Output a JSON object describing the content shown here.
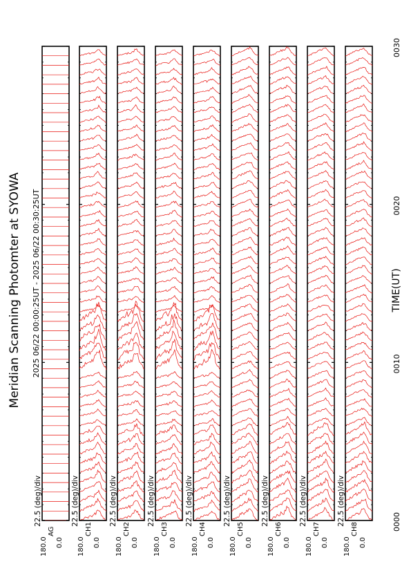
{
  "chart_data": {
    "type": "line",
    "title": "Meridian Scanning Photomter at SYOWA",
    "subtitle": "2025 06/22 00:00:25UT - 2025 06/22 00:30:25UT",
    "xlabel": "TIME(UT)",
    "x_ticks": [
      "0000",
      "0010",
      "0020",
      "0030"
    ],
    "x_range_minutes": [
      0,
      30
    ],
    "y_ticks": [
      "180.0",
      "0.0"
    ],
    "ylim": [
      0,
      180
    ],
    "scale_label": "22.5 (deg)/div",
    "series_color": "#e8100c",
    "panels": [
      {
        "channel": "AG",
        "scale": "22.5 (deg)/div",
        "ymax": "180.0",
        "ymin": "0.0",
        "pattern": "flat"
      },
      {
        "channel": "CH1",
        "scale": "22.5 (deg)/div",
        "ymax": "180.0",
        "ymin": "0.0",
        "pattern": "auroral"
      },
      {
        "channel": "CH2",
        "scale": "22.5 (deg)/div",
        "ymax": "180.0",
        "ymin": "0.0",
        "pattern": "auroral"
      },
      {
        "channel": "CH3",
        "scale": "22.5 (deg)/div",
        "ymax": "180.0",
        "ymin": "0.0",
        "pattern": "auroral"
      },
      {
        "channel": "CH4",
        "scale": "22.5 (deg)/div",
        "ymax": "180.0",
        "ymin": "0.0",
        "pattern": "auroral"
      },
      {
        "channel": "CH5",
        "scale": "22.5 (deg)/div",
        "ymax": "180.0",
        "ymin": "0.0",
        "pattern": "auroral"
      },
      {
        "channel": "CH6",
        "scale": "22.5 (deg)/div",
        "ymax": "180.0",
        "ymin": "0.0",
        "pattern": "auroral"
      },
      {
        "channel": "CH7",
        "scale": "22.5 (deg)/div",
        "ymax": "180.0",
        "ymin": "0.0",
        "pattern": "auroral"
      },
      {
        "channel": "CH8",
        "scale": "22.5 (deg)/div",
        "ymax": "180.0",
        "ymin": "0.0",
        "pattern": "auroral"
      }
    ]
  }
}
